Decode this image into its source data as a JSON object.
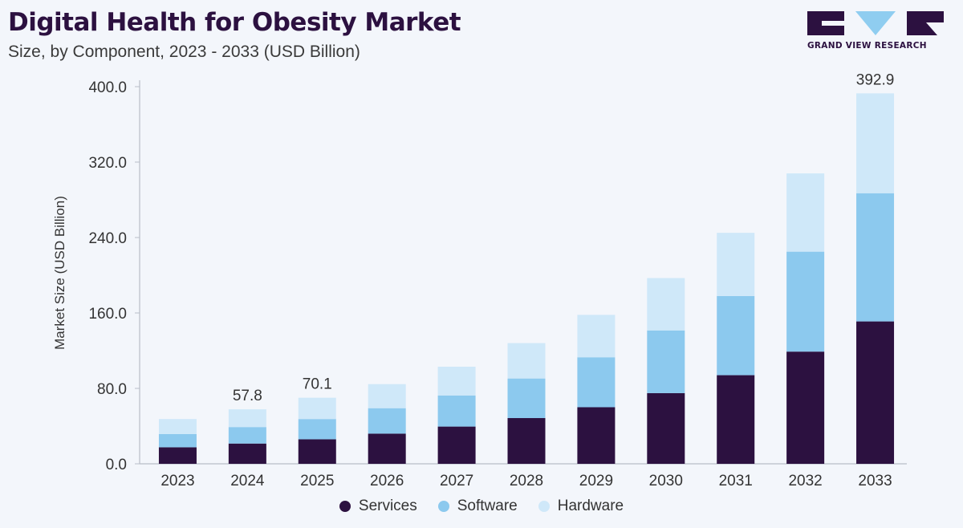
{
  "title": "Digital Health for Obesity Market",
  "subtitle": "Size, by Component, 2023 - 2033 (USD Billion)",
  "brand": {
    "name": "GRAND VIEW RESEARCH",
    "logo_icon": "gvr-logo-icon",
    "color": "#2c1140",
    "accent": "#8fcdf0"
  },
  "colors": {
    "services": "#2c1140",
    "software": "#8cc9ee",
    "hardware": "#cfe8f9"
  },
  "chart_data": {
    "type": "bar",
    "stacked": true,
    "categories": [
      "2023",
      "2024",
      "2025",
      "2026",
      "2027",
      "2028",
      "2029",
      "2030",
      "2031",
      "2032",
      "2033"
    ],
    "series": [
      {
        "name": "Services",
        "values": [
          17.5,
          21.5,
          26.0,
          32.0,
          39.5,
          48.5,
          60.0,
          75.0,
          94.0,
          119.0,
          151.0
        ]
      },
      {
        "name": "Software",
        "values": [
          14.0,
          17.5,
          21.5,
          27.0,
          33.0,
          42.0,
          53.0,
          66.5,
          84.0,
          106.0,
          136.0
        ]
      },
      {
        "name": "Hardware",
        "values": [
          16.0,
          18.8,
          22.6,
          25.5,
          30.5,
          37.5,
          45.0,
          55.5,
          67.0,
          83.0,
          105.9
        ]
      }
    ],
    "totals_labels": [
      {
        "category": "2024",
        "label": "57.8"
      },
      {
        "category": "2025",
        "label": "70.1"
      },
      {
        "category": "2033",
        "label": "392.9"
      }
    ],
    "xlabel": "",
    "ylabel": "Market Size (USD Billion)",
    "ylim": [
      0,
      400
    ],
    "yticks": [
      "0.0",
      "80.0",
      "160.0",
      "240.0",
      "320.0",
      "400.0"
    ],
    "ytick_values": [
      0,
      80,
      160,
      240,
      320,
      400
    ],
    "grid": false,
    "legend_position": "bottom-center"
  }
}
